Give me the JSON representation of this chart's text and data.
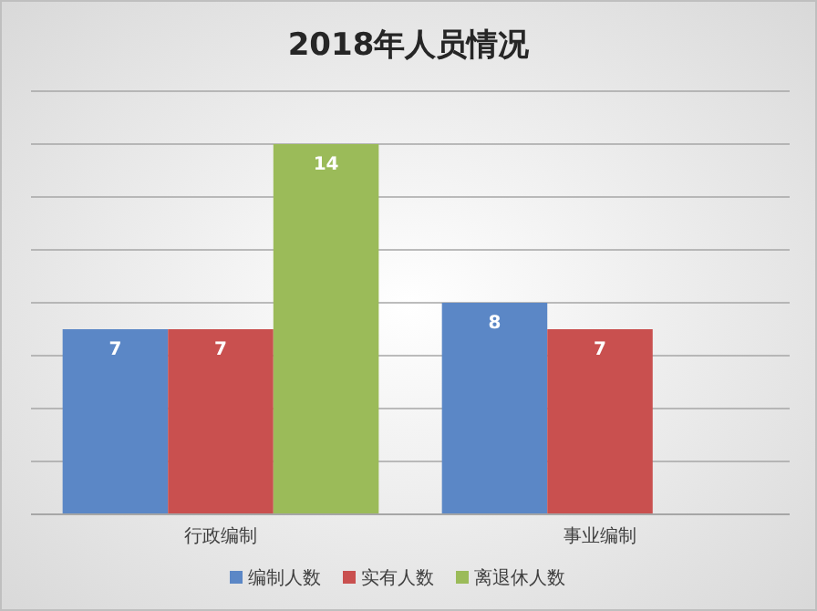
{
  "chart_data": {
    "type": "bar",
    "title": "2018年人员情况",
    "categories": [
      "行政编制",
      "事业编制"
    ],
    "series": [
      {
        "name": "编制人数",
        "color": "#5b87c6",
        "values": [
          7,
          8
        ]
      },
      {
        "name": "实有人数",
        "color": "#c9504f",
        "values": [
          7,
          7
        ]
      },
      {
        "name": "离退休人数",
        "color": "#9bbb59",
        "values": [
          14,
          null
        ]
      }
    ],
    "ylim": [
      0,
      16
    ],
    "yticks": [
      {
        "value": 0,
        "label": null
      },
      {
        "value": 2,
        "label": null
      },
      {
        "value": 4,
        "label": null
      },
      {
        "value": 6,
        "label": null
      },
      {
        "value": 8,
        "label": null
      },
      {
        "value": 10,
        "label": null
      },
      {
        "value": 12,
        "label": null
      },
      {
        "value": 14,
        "label": null
      },
      {
        "value": 16,
        "label": null
      }
    ],
    "tick_labels": "x",
    "grid": "y",
    "data_labels": true,
    "legend": "bottom"
  }
}
